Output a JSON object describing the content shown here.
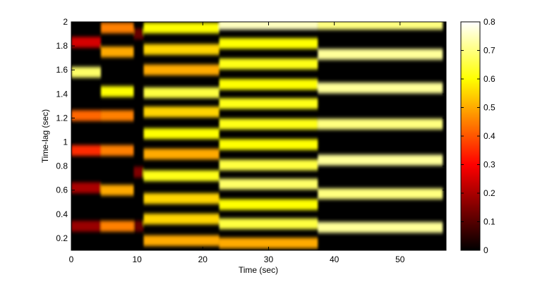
{
  "chart_data": {
    "type": "heatmap",
    "title": "",
    "xlabel": "Time (sec)",
    "ylabel": "Time-lag (sec)",
    "xlim": [
      0,
      57
    ],
    "ylim": [
      0.1,
      2.0
    ],
    "x_ticks": [
      0,
      10,
      20,
      30,
      40,
      50
    ],
    "y_ticks": [
      0.2,
      0.4,
      0.6,
      0.8,
      1,
      1.2,
      1.4,
      1.6,
      1.8,
      2
    ],
    "colormap": "hot",
    "colorbar": {
      "range": [
        0,
        0.8
      ],
      "ticks": [
        0,
        0.1,
        0.2,
        0.3,
        0.4,
        0.5,
        0.6,
        0.7,
        0.8
      ]
    },
    "segments": [
      {
        "x_range": [
          0,
          4.5
        ],
        "bands": [
          {
            "lag": 1.58,
            "value": 0.68
          },
          {
            "lag": 1.22,
            "value": 0.42
          },
          {
            "lag": 0.93,
            "value": 0.35
          },
          {
            "lag": 0.62,
            "value": 0.2
          },
          {
            "lag": 0.3,
            "value": 0.18
          },
          {
            "lag": 1.83,
            "value": 0.25
          }
        ]
      },
      {
        "x_range": [
          4.5,
          9.5
        ],
        "bands": [
          {
            "lag": 1.95,
            "value": 0.45
          },
          {
            "lag": 1.75,
            "value": 0.5
          },
          {
            "lag": 1.42,
            "value": 0.6
          },
          {
            "lag": 1.22,
            "value": 0.45
          },
          {
            "lag": 0.93,
            "value": 0.45
          },
          {
            "lag": 0.6,
            "value": 0.5
          },
          {
            "lag": 0.3,
            "value": 0.45
          }
        ]
      },
      {
        "x_range": [
          9.5,
          11
        ],
        "bands": [
          {
            "lag": 1.9,
            "value": 0.12
          },
          {
            "lag": 0.75,
            "value": 0.15
          },
          {
            "lag": 0.3,
            "value": 0.12
          }
        ]
      },
      {
        "x_range": [
          11,
          22.5
        ],
        "bands": [
          {
            "lag": 1.95,
            "value": 0.6
          },
          {
            "lag": 1.77,
            "value": 0.55
          },
          {
            "lag": 1.6,
            "value": 0.5
          },
          {
            "lag": 1.41,
            "value": 0.65
          },
          {
            "lag": 1.25,
            "value": 0.55
          },
          {
            "lag": 1.07,
            "value": 0.6
          },
          {
            "lag": 0.9,
            "value": 0.5
          },
          {
            "lag": 0.72,
            "value": 0.62
          },
          {
            "lag": 0.53,
            "value": 0.55
          },
          {
            "lag": 0.36,
            "value": 0.55
          },
          {
            "lag": 0.18,
            "value": 0.5
          }
        ]
      },
      {
        "x_range": [
          22.5,
          37.5
        ],
        "bands": [
          {
            "lag": 1.98,
            "value": 0.75
          },
          {
            "lag": 1.82,
            "value": 0.6
          },
          {
            "lag": 1.65,
            "value": 0.62
          },
          {
            "lag": 1.48,
            "value": 0.6
          },
          {
            "lag": 1.32,
            "value": 0.62
          },
          {
            "lag": 1.15,
            "value": 0.62
          },
          {
            "lag": 0.98,
            "value": 0.6
          },
          {
            "lag": 0.81,
            "value": 0.65
          },
          {
            "lag": 0.65,
            "value": 0.68
          },
          {
            "lag": 0.48,
            "value": 0.6
          },
          {
            "lag": 0.32,
            "value": 0.65
          },
          {
            "lag": 0.16,
            "value": 0.5
          }
        ]
      },
      {
        "x_range": [
          37.5,
          56.5
        ],
        "bands": [
          {
            "lag": 1.98,
            "value": 0.7
          },
          {
            "lag": 1.73,
            "value": 0.72
          },
          {
            "lag": 1.45,
            "value": 0.72
          },
          {
            "lag": 1.15,
            "value": 0.7
          },
          {
            "lag": 0.85,
            "value": 0.72
          },
          {
            "lag": 0.57,
            "value": 0.7
          },
          {
            "lag": 0.29,
            "value": 0.72
          }
        ]
      }
    ]
  }
}
